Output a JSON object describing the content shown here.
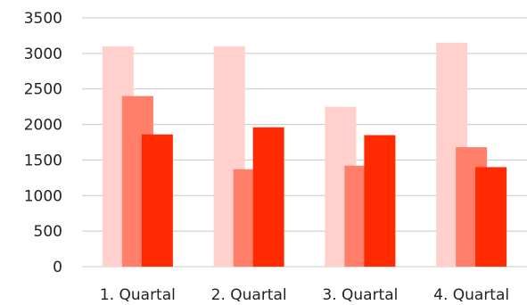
{
  "chart_data": {
    "type": "bar",
    "title": "",
    "xlabel": "",
    "ylabel": "",
    "categories": [
      "1. Quartal",
      "2. Quartal",
      "3. Quartal",
      "4. Quartal"
    ],
    "ylim": [
      0,
      3500
    ],
    "yticks": [
      0,
      500,
      1000,
      1500,
      2000,
      2500,
      3000,
      3500
    ],
    "grid": true,
    "legend": "none",
    "series": [
      {
        "values": [
          3100,
          3100,
          2250,
          3150
        ],
        "color": "#ffd0cc"
      },
      {
        "values": [
          2400,
          1370,
          1420,
          1680
        ],
        "color": "#ff7f6a"
      },
      {
        "values": [
          1860,
          1960,
          1850,
          1400
        ],
        "color": "#ff2a00"
      }
    ]
  }
}
